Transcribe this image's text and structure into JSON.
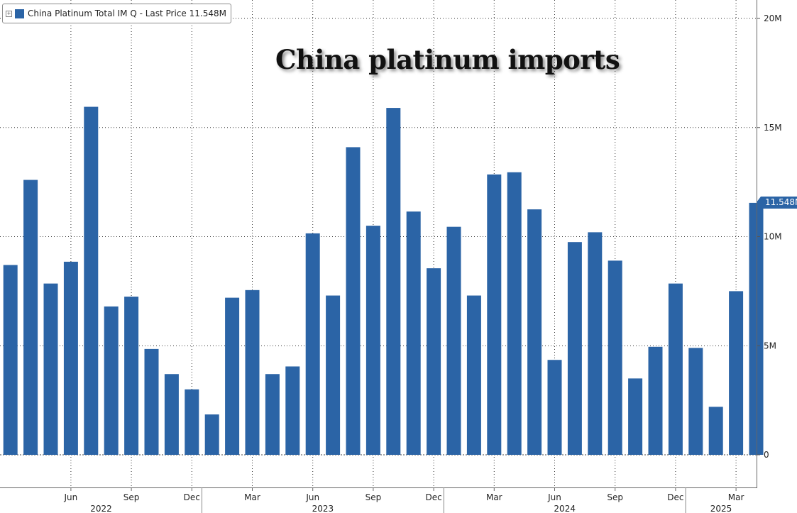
{
  "legend": {
    "toggle_symbol": "+",
    "label": "China Platinum Total IM Q - Last Price 11.548M"
  },
  "title": "China platinum imports",
  "last_value_label": "11.548M",
  "colors": {
    "bar": "#2b64a6",
    "grid": "#333333",
    "axis_text": "#222222",
    "background": "#ffffff"
  },
  "chart_data": {
    "type": "bar",
    "title": "China platinum imports",
    "series": [
      {
        "name": "China Platinum Total IM Q - Last Price 11.548M",
        "values": [
          8.7,
          12.6,
          7.85,
          8.85,
          15.95,
          6.8,
          7.25,
          4.85,
          3.7,
          3.0,
          1.85,
          7.2,
          7.55,
          3.7,
          4.05,
          10.15,
          7.3,
          14.1,
          10.5,
          15.9,
          11.15,
          8.55,
          10.45,
          7.3,
          12.85,
          12.95,
          11.25,
          4.35,
          9.75,
          10.2,
          8.9,
          3.5,
          4.95,
          7.85,
          4.9,
          2.2,
          7.5,
          11.548
        ]
      }
    ],
    "categories": [
      "2022-03",
      "2022-04",
      "2022-05",
      "2022-06",
      "2022-07",
      "2022-08",
      "2022-09",
      "2022-10",
      "2022-11",
      "2022-12",
      "2023-01",
      "2023-02",
      "2023-03",
      "2023-04",
      "2023-05",
      "2023-06",
      "2023-07",
      "2023-08",
      "2023-09",
      "2023-10",
      "2023-11",
      "2023-12",
      "2024-01",
      "2024-02",
      "2024-03",
      "2024-04",
      "2024-05",
      "2024-06",
      "2024-07",
      "2024-08",
      "2024-09",
      "2024-10",
      "2024-11",
      "2024-12",
      "2025-01",
      "2025-02",
      "2025-03",
      "2025-04"
    ],
    "y_ticks": [
      {
        "value": 0,
        "label": "0"
      },
      {
        "value": 5,
        "label": "5M"
      },
      {
        "value": 10,
        "label": "10M"
      },
      {
        "value": 15,
        "label": "15M"
      },
      {
        "value": 20,
        "label": "20M"
      }
    ],
    "ylim": [
      0,
      21.5
    ],
    "y_axis_side": "right",
    "month_ticks": [
      {
        "index": 3,
        "label": "Jun"
      },
      {
        "index": 6,
        "label": "Sep"
      },
      {
        "index": 9,
        "label": "Dec"
      },
      {
        "index": 12,
        "label": "Mar"
      },
      {
        "index": 15,
        "label": "Jun"
      },
      {
        "index": 18,
        "label": "Sep"
      },
      {
        "index": 21,
        "label": "Dec"
      },
      {
        "index": 24,
        "label": "Mar"
      },
      {
        "index": 27,
        "label": "Jun"
      },
      {
        "index": 30,
        "label": "Sep"
      },
      {
        "index": 33,
        "label": "Dec"
      },
      {
        "index": 36,
        "label": "Mar"
      }
    ],
    "year_labels": [
      {
        "label": "2022",
        "start": -0.5,
        "end": 9.5
      },
      {
        "label": "2023",
        "start": 9.5,
        "end": 21.5
      },
      {
        "label": "2024",
        "start": 21.5,
        "end": 33.5
      },
      {
        "label": "2025",
        "start": 33.5,
        "end": 37.5
      }
    ],
    "grid": true,
    "legend_position": "top-left",
    "last_value": 11.548
  }
}
